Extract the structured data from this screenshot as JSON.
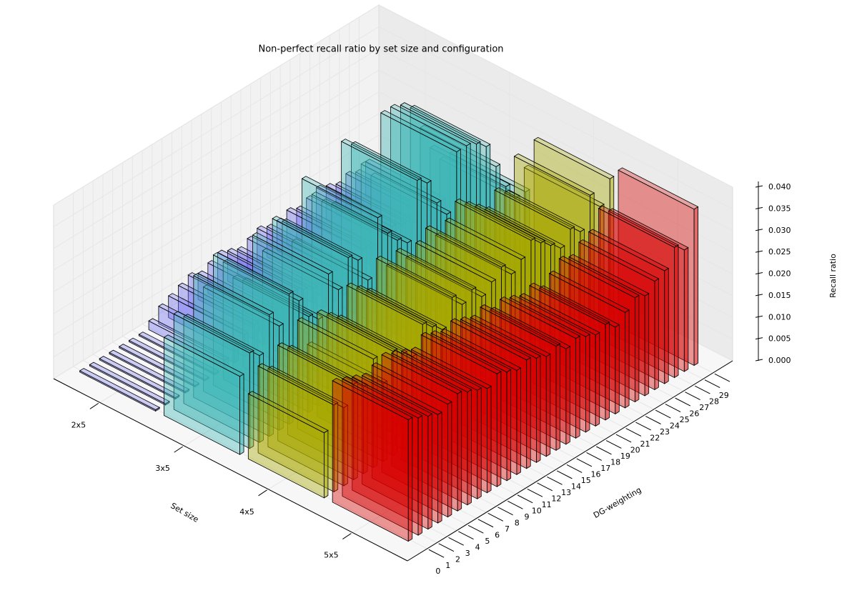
{
  "chart_data": {
    "type": "bar3d",
    "title": "Non-perfect recall ratio by set size and configuration",
    "xlabel": "DG-weighting",
    "ylabel": "Set size",
    "zlabel": "Recall ratio",
    "x": [
      0,
      1,
      2,
      3,
      4,
      5,
      6,
      7,
      8,
      9,
      10,
      11,
      12,
      13,
      14,
      15,
      16,
      17,
      18,
      19,
      20,
      21,
      22,
      23,
      24,
      25,
      26,
      27,
      28,
      29
    ],
    "xlim": [
      -2,
      31
    ],
    "zlim": [
      0,
      0.04
    ],
    "zticks": [
      {
        "value": 0,
        "label": "0.000"
      },
      0.005,
      {
        "value": 0.01,
        "label": "0.010"
      },
      0.015,
      {
        "value": 0.02,
        "label": "0.020"
      },
      0.025,
      {
        "value": 0.03,
        "label": "0.030"
      },
      0.035,
      {
        "value": 0.04,
        "label": "0.040"
      }
    ],
    "grid": true,
    "series": [
      {
        "name": "2x5",
        "color": "#6b6bf0",
        "values": [
          0.0003,
          0.0003,
          0.0003,
          0.0003,
          0.0003,
          0.0003,
          0.0003,
          0.002,
          0.004,
          0.005,
          0.006,
          0.007,
          0.006,
          0.007,
          0.008,
          0.007,
          0.006,
          0.007,
          0.008,
          0.007,
          0.007,
          0.008,
          0.007,
          0.008,
          0.009,
          0.008,
          0.007,
          0.008,
          0.007,
          0.008
        ]
      },
      {
        "name": "3x5",
        "color": "#3fb6b6",
        "values": [
          0.018,
          0.022,
          0.02,
          0.028,
          0.024,
          0.03,
          0.027,
          0.022,
          0.02,
          0.029,
          0.024,
          0.03,
          0.028,
          0.022,
          0.035,
          0.03,
          0.027,
          0.025,
          0.038,
          0.036,
          0.03,
          0.026,
          0.039,
          0.039,
          0.038,
          0.036,
          0.03,
          0.024,
          0.02,
          0.02
        ]
      },
      {
        "name": "4x5",
        "color": "#a8a800",
        "values": [
          0.015,
          0.02,
          0.018,
          0.022,
          0.02,
          0.025,
          0.018,
          0.024,
          0.022,
          0.02,
          0.026,
          0.024,
          0.022,
          0.028,
          0.025,
          0.027,
          0.024,
          0.026,
          0.028,
          0.025,
          0.027,
          0.03,
          0.028,
          0.026,
          0.024,
          0.027,
          0.025,
          0.032,
          0.028,
          0.033
        ]
      },
      {
        "name": "5x5",
        "color": "#d80000",
        "values": [
          0.028,
          0.027,
          0.026,
          0.025,
          0.026,
          0.027,
          0.026,
          0.025,
          0.024,
          0.026,
          0.025,
          0.024,
          0.025,
          0.024,
          0.023,
          0.024,
          0.022,
          0.023,
          0.022,
          0.021,
          0.022,
          0.02,
          0.022,
          0.024,
          0.023,
          0.025,
          0.026,
          0.03,
          0.028,
          0.036
        ]
      }
    ]
  }
}
